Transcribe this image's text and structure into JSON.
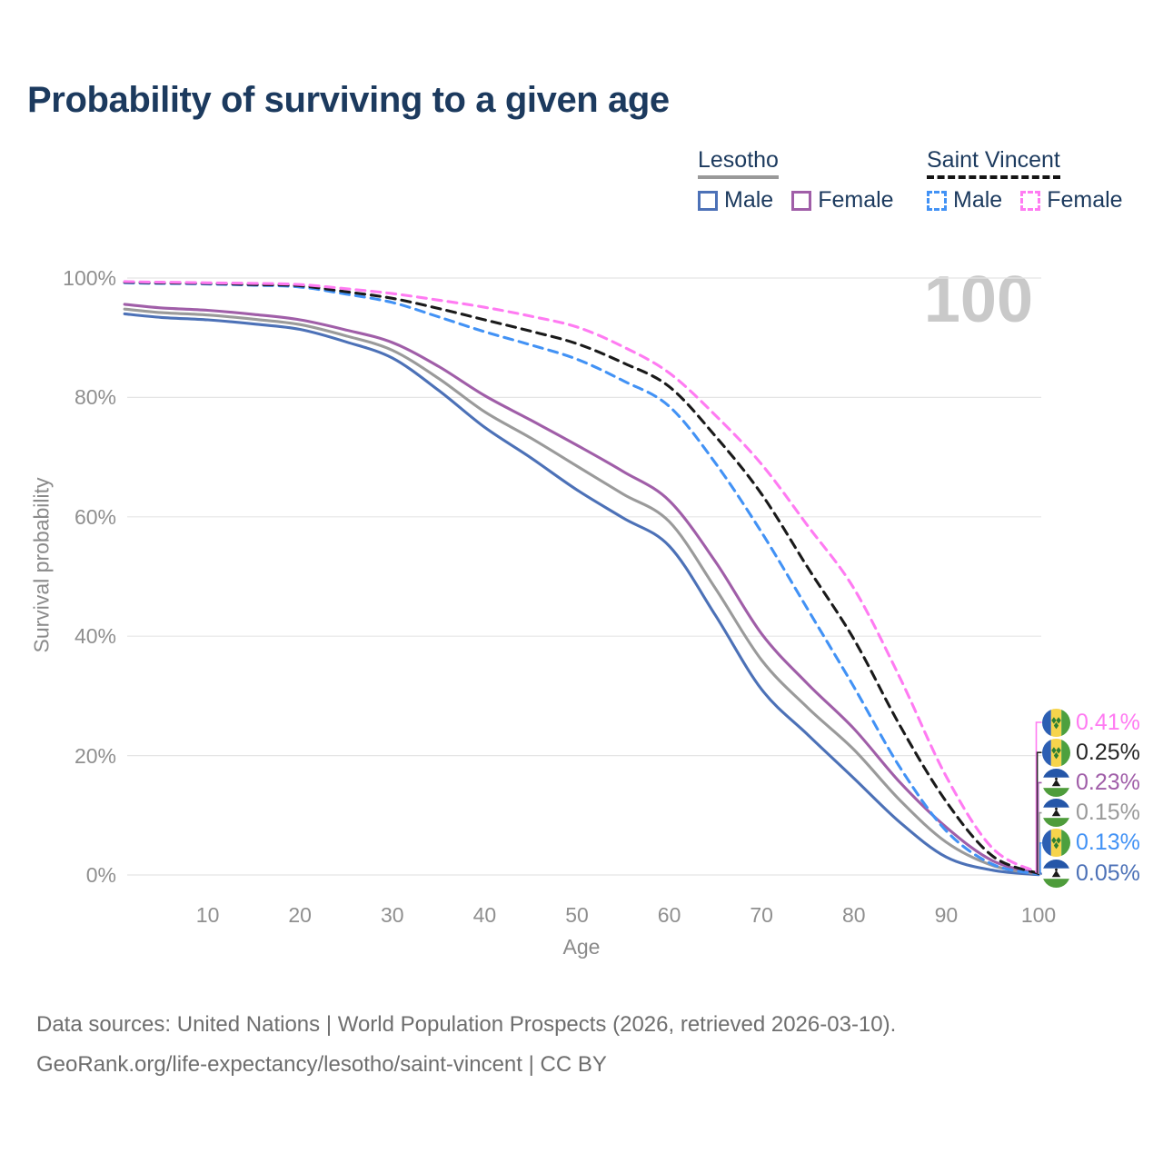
{
  "title": "Probability of surviving to a given age",
  "age_watermark": "100",
  "legend": {
    "groups": [
      {
        "name": "Lesotho",
        "line_style": "solid",
        "underline_color": "#999999",
        "items": [
          {
            "label": "Male",
            "color": "#4C71B7"
          },
          {
            "label": "Female",
            "color": "#A05EA8"
          }
        ]
      },
      {
        "name": "Saint Vincent",
        "line_style": "dashed",
        "underline_color": "#141414",
        "items": [
          {
            "label": "Male",
            "color": "#4292F5"
          },
          {
            "label": "Female",
            "color": "#FF7BF2"
          }
        ]
      }
    ]
  },
  "chart_data": {
    "type": "line",
    "title": "Probability of surviving to a given age",
    "xlabel": "Age",
    "ylabel": "Survival probability",
    "xlim": [
      0,
      100
    ],
    "ylim": [
      0,
      100
    ],
    "grid": true,
    "legend_position": "top-right",
    "xticks": [
      10,
      20,
      30,
      40,
      50,
      60,
      70,
      80,
      90,
      100
    ],
    "ytick_values": [
      0,
      20,
      40,
      60,
      80,
      100
    ],
    "yticks": [
      "0%",
      "20%",
      "40%",
      "60%",
      "80%",
      "100%"
    ],
    "x": [
      1,
      5,
      10,
      15,
      20,
      25,
      30,
      35,
      40,
      45,
      50,
      55,
      60,
      65,
      70,
      75,
      80,
      85,
      90,
      95,
      100
    ],
    "series": [
      {
        "key": "ls-male",
        "name": "Lesotho Male",
        "color": "#4C71B7",
        "dash": false,
        "values": [
          94.0,
          93.4,
          93.0,
          92.3,
          91.4,
          89.3,
          86.6,
          81.2,
          75.0,
          69.9,
          64.5,
          59.8,
          55.1,
          43.5,
          31.1,
          23.5,
          16.2,
          8.8,
          3.0,
          0.8,
          0.05
        ]
      },
      {
        "key": "ls-total",
        "name": "Lesotho",
        "color": "#9A9A9A",
        "dash": false,
        "values": [
          94.8,
          94.2,
          93.8,
          93.1,
          92.2,
          90.3,
          87.9,
          83.2,
          77.6,
          73.2,
          68.5,
          63.8,
          59.2,
          48.0,
          36.0,
          28.0,
          21.0,
          12.5,
          5.5,
          1.6,
          0.15
        ]
      },
      {
        "key": "ls-female",
        "name": "Lesotho Female",
        "color": "#A05EA8",
        "dash": false,
        "values": [
          95.6,
          95.0,
          94.6,
          93.9,
          93.0,
          91.3,
          89.2,
          85.2,
          80.3,
          76.2,
          72.0,
          67.6,
          62.7,
          52.5,
          40.4,
          32.0,
          24.5,
          15.5,
          8.0,
          2.4,
          0.23
        ]
      },
      {
        "key": "sv-male",
        "name": "Saint Vincent Male",
        "color": "#4292F5",
        "dash": true,
        "values": [
          99.2,
          99.1,
          99.0,
          98.8,
          98.5,
          97.3,
          95.9,
          93.5,
          91.0,
          88.8,
          86.4,
          82.8,
          78.5,
          69.0,
          57.4,
          44.5,
          31.5,
          18.0,
          7.4,
          1.8,
          0.13
        ]
      },
      {
        "key": "sv-total",
        "name": "Saint Vincent",
        "color": "#1A1A1A",
        "dash": true,
        "values": [
          99.3,
          99.2,
          99.1,
          98.9,
          98.7,
          97.7,
          96.6,
          94.9,
          93.0,
          91.1,
          89.0,
          85.8,
          81.8,
          73.5,
          63.8,
          51.5,
          39.5,
          25.0,
          12.3,
          3.2,
          0.25
        ]
      },
      {
        "key": "sv-female",
        "name": "Saint Vincent Female",
        "color": "#FF7BF2",
        "dash": true,
        "values": [
          99.4,
          99.3,
          99.2,
          99.1,
          98.9,
          98.2,
          97.4,
          96.3,
          95.1,
          93.6,
          91.8,
          88.5,
          84.1,
          77.0,
          68.8,
          58.5,
          48.0,
          33.0,
          16.5,
          4.5,
          0.41
        ]
      }
    ],
    "end_labels": [
      {
        "value": "0.41%",
        "color": "#FF7BF2",
        "flag": "saint-vincent",
        "series_key": "sv-female"
      },
      {
        "value": "0.25%",
        "color": "#262626",
        "flag": "saint-vincent",
        "series_key": "sv-total"
      },
      {
        "value": "0.23%",
        "color": "#A05EA8",
        "flag": "lesotho",
        "series_key": "ls-female"
      },
      {
        "value": "0.15%",
        "color": "#9A9A9A",
        "flag": "lesotho",
        "series_key": "ls-total"
      },
      {
        "value": "0.13%",
        "color": "#4292F5",
        "flag": "saint-vincent",
        "series_key": "sv-male"
      },
      {
        "value": "0.05%",
        "color": "#4C71B7",
        "flag": "lesotho",
        "series_key": "ls-male"
      }
    ]
  },
  "footer": {
    "line1": "Data sources: United Nations | World Population Prospects (2026, retrieved 2026-03-10).",
    "line2": "GeoRank.org/life-expectancy/lesotho/saint-vincent | CC BY"
  }
}
